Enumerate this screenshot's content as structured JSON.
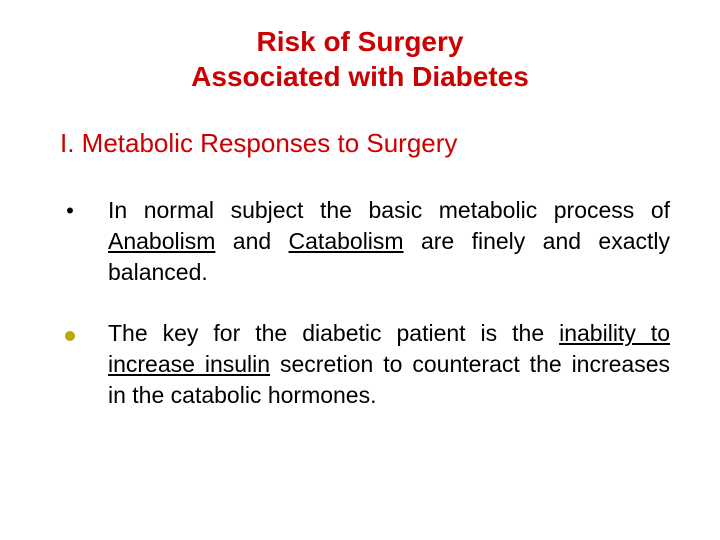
{
  "title_fontsize": 28,
  "title_color": "#cc0000",
  "title_line1": "Risk of Surgery",
  "title_line2": "Associated with Diabetes",
  "subtitle_fontsize": 26,
  "subtitle_color": "#cc0000",
  "subtitle_text": "I. Metabolic Responses to Surgery",
  "body_fontsize": 23,
  "body_color": "#000000",
  "bullet_disc_color": "#b8a800",
  "bullets": [
    {
      "marker": "dot",
      "segments": [
        {
          "t": "     In normal subject the basic metabolic process of ",
          "u": false
        },
        {
          "t": "Anabolism",
          "u": true
        },
        {
          "t": " and ",
          "u": false
        },
        {
          "t": "Catabolism",
          "u": true
        },
        {
          "t": " are finely and exactly balanced.",
          "u": false
        }
      ]
    },
    {
      "marker": "disc",
      "segments": [
        {
          "t": "    The  key for the diabetic patient is the ",
          "u": false
        },
        {
          "t": "inability to increase insulin",
          "u": true
        },
        {
          "t": " secretion to counteract the increases in the catabolic hormones.",
          "u": false
        }
      ]
    }
  ]
}
